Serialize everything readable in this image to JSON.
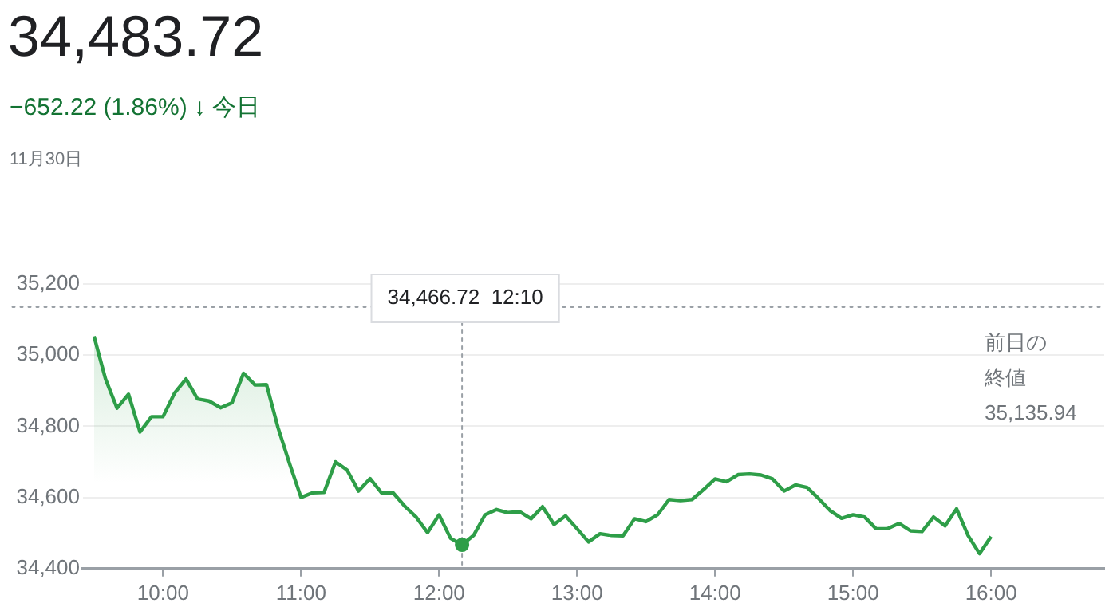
{
  "chart_data": {
    "type": "area",
    "title": "34,483.72",
    "subtitle": "−652.22 (1.86%) ↓ 今日",
    "annotations": [
      "11月30日",
      "34,466.72  12:10"
    ],
    "x": [
      9.5,
      9.5833,
      9.6667,
      9.75,
      9.8333,
      9.9167,
      10,
      10.0833,
      10.1667,
      10.25,
      10.3333,
      10.4167,
      10.5,
      10.5833,
      10.6667,
      10.75,
      10.8333,
      10.9167,
      11,
      11.0833,
      11.1667,
      11.25,
      11.3333,
      11.4167,
      11.5,
      11.5833,
      11.6667,
      11.75,
      11.8333,
      11.9167,
      12,
      12.0833,
      12.1667,
      12.25,
      12.3333,
      12.4167,
      12.5,
      12.5833,
      12.6667,
      12.75,
      12.8333,
      12.9167,
      13,
      13.0833,
      13.1667,
      13.25,
      13.3333,
      13.4167,
      13.5,
      13.5833,
      13.6667,
      13.75,
      13.8333,
      13.9167,
      14,
      14.0833,
      14.1667,
      14.25,
      14.3333,
      14.4167,
      14.5,
      14.5833,
      14.6667,
      14.75,
      14.8333,
      14.9167,
      15,
      15.0833,
      15.1667,
      15.25,
      15.3333,
      15.4167,
      15.5,
      15.5833,
      15.6667,
      15.75,
      15.8333,
      15.9167,
      16
    ],
    "series": [
      {
        "color": "#2e9e48",
        "values": [
          35053,
          34933,
          34851,
          34890,
          34784,
          34827,
          34827,
          34893,
          34933,
          34877,
          34871,
          34852,
          34866,
          34949,
          34916,
          34917,
          34796,
          34695,
          34600,
          34613,
          34614,
          34700,
          34677,
          34618,
          34653,
          34613,
          34613,
          34576,
          34545,
          34501,
          34551,
          34485,
          34466.72,
          34493,
          34551,
          34566,
          34557,
          34560,
          34540,
          34574,
          34524,
          34548,
          34512,
          34475,
          34498,
          34493,
          34492,
          34540,
          34532,
          34551,
          34594,
          34591,
          34594,
          34622,
          34652,
          34644,
          34664,
          34666,
          34663,
          34652,
          34618,
          34635,
          34628,
          34597,
          34563,
          34541,
          34551,
          34545,
          34512,
          34512,
          34527,
          34506,
          34504,
          34545,
          34520,
          34568,
          34493,
          34442,
          34490
        ]
      }
    ],
    "xlim": [
      9.42,
      16.82
    ],
    "xticks": [
      {
        "value": 10,
        "label": "10:00"
      },
      {
        "value": 11,
        "label": "11:00"
      },
      {
        "value": 12,
        "label": "12:00"
      },
      {
        "value": 13,
        "label": "13:00"
      },
      {
        "value": 14,
        "label": "14:00"
      },
      {
        "value": 15,
        "label": "15:00"
      },
      {
        "value": 16,
        "label": "16:00"
      }
    ],
    "ylim": [
      34400,
      35200
    ],
    "yticks": [
      {
        "value": 34400,
        "label": "34,400"
      },
      {
        "value": 34600,
        "label": "34,600"
      },
      {
        "value": 34800,
        "label": "34,800"
      },
      {
        "value": 35000,
        "label": "35,000"
      },
      {
        "value": 35200,
        "label": "35,200"
      }
    ],
    "ref_lines": [
      {
        "axis": "y",
        "value": 35135.94,
        "label": "前日の終値 35,135.94",
        "line_style": "dotted",
        "color": "#9aa0a6"
      },
      {
        "axis": "x",
        "value": 12.1667,
        "line_style": "dotted",
        "color": "#9aa0a6"
      }
    ],
    "grid": "y",
    "legend": false,
    "marker": "none",
    "line_style": "solid"
  }
}
